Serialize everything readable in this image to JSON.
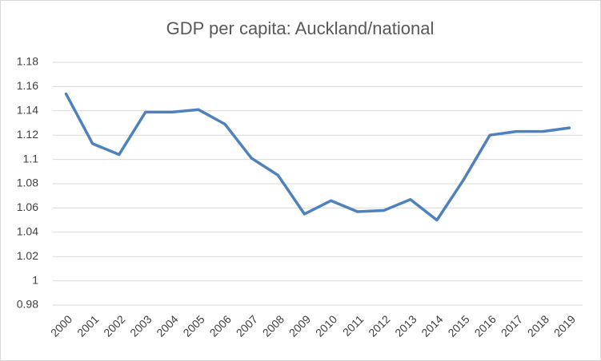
{
  "chart_data": {
    "type": "line",
    "title": "GDP per capita: Auckland/national",
    "categories": [
      "2000",
      "2001",
      "2002",
      "2003",
      "2004",
      "2005",
      "2006",
      "2007",
      "2008",
      "2009",
      "2010",
      "2011",
      "2012",
      "2013",
      "2014",
      "2015",
      "2016",
      "2017",
      "2018",
      "2019"
    ],
    "values": [
      1.154,
      1.113,
      1.104,
      1.139,
      1.139,
      1.141,
      1.129,
      1.101,
      1.087,
      1.055,
      1.066,
      1.057,
      1.058,
      1.067,
      1.05,
      1.083,
      1.12,
      1.123,
      1.123,
      1.126
    ],
    "color": "#4f81bd",
    "ylim": [
      0.98,
      1.18
    ],
    "yticks": [
      0.98,
      1,
      1.02,
      1.04,
      1.06,
      1.08,
      1.1,
      1.12,
      1.14,
      1.16,
      1.18
    ],
    "grid": true
  }
}
